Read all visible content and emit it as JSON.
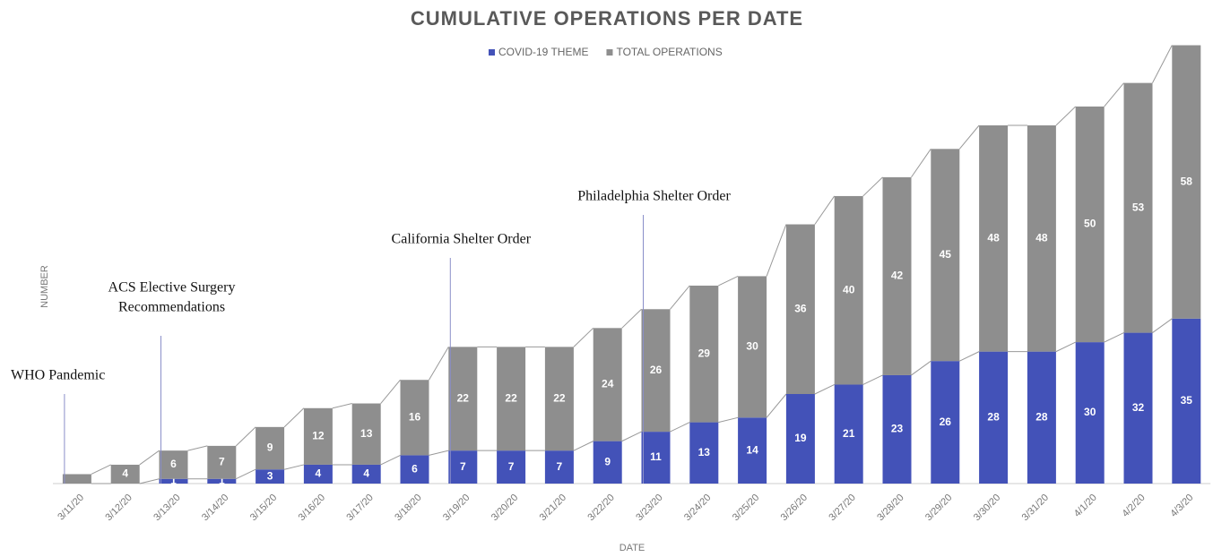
{
  "chart_data": {
    "type": "stacked_bar",
    "title": "CUMULATIVE OPERATIONS PER DATE",
    "x_label": "DATE",
    "y_label": "NUMBER",
    "categories": [
      "3/11/20",
      "3/12/20",
      "3/13/20",
      "3/14/20",
      "3/15/20",
      "3/16/20",
      "3/17/20",
      "3/18/20",
      "3/19/20",
      "3/20/20",
      "3/21/20",
      "3/22/20",
      "3/23/20",
      "3/24/20",
      "3/25/20",
      "3/26/20",
      "3/27/20",
      "3/28/20",
      "3/29/20",
      "3/30/20",
      "3/31/20",
      "4/1/20",
      "4/2/20",
      "4/3/20"
    ],
    "series": [
      {
        "name": "COVID-19 THEME",
        "color": "#4352b8",
        "values": [
          0,
          0,
          1,
          1,
          3,
          4,
          4,
          6,
          7,
          7,
          7,
          9,
          11,
          13,
          14,
          19,
          21,
          23,
          26,
          28,
          28,
          30,
          32,
          35
        ]
      },
      {
        "name": "TOTAL OPERATIONS",
        "color": "#8e8e8e",
        "values": [
          2,
          4,
          6,
          7,
          9,
          12,
          13,
          16,
          22,
          22,
          22,
          24,
          26,
          29,
          30,
          36,
          40,
          42,
          45,
          48,
          48,
          50,
          53,
          58
        ]
      }
    ],
    "ylim": [
      0,
      95
    ],
    "annotations": [
      {
        "x": "3/11/20",
        "lines": [
          "WHO Pandemic"
        ]
      },
      {
        "x": "3/13/20",
        "lines": [
          "ACS Elective Surgery",
          "Recommendations"
        ]
      },
      {
        "x": "3/19/20",
        "lines": [
          "California Shelter Order"
        ]
      },
      {
        "x": "3/23/20",
        "lines": [
          "Philadelphia Shelter Order"
        ]
      }
    ]
  }
}
